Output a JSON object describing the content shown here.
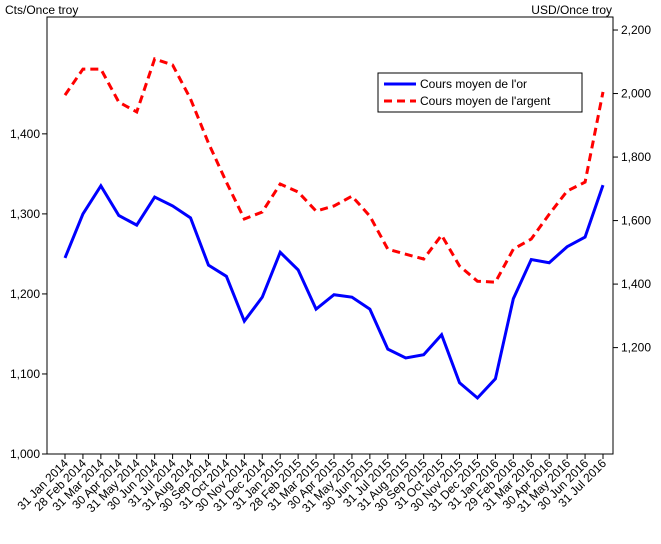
{
  "chart_data": {
    "type": "line",
    "ylabel": "Cts/Once troy",
    "y2label": "USD/Once troy",
    "categories": [
      "31 Jan 2014",
      "28 Feb 2014",
      "31 Mar 2014",
      "30 Apr 2014",
      "31 May 2014",
      "30 Jun 2014",
      "31 Jul 2014",
      "31 Aug 2014",
      "30 Sep 2014",
      "31 Oct 2014",
      "30 Nov 2014",
      "31 Dec 2014",
      "31 Jan 2015",
      "28 Feb 2015",
      "31 Mar 2015",
      "30 Apr 2015",
      "31 May 2015",
      "30 Jun 2015",
      "31 Jul 2015",
      "31 Aug 2015",
      "30 Sep 2015",
      "31 Oct 2015",
      "30 Nov 2015",
      "31 Dec 2015",
      "31 Jan 2016",
      "29 Feb 2016",
      "31 Mar 2016",
      "30 Apr 2016",
      "31 May 2016",
      "30 Jun 2016",
      "31 Jul 2016"
    ],
    "series": [
      {
        "name": "Cours moyen de l'or",
        "color": "#0000ff",
        "dash": false,
        "axis": "y",
        "values": [
          1245,
          1300,
          1335,
          1298,
          1286,
          1321,
          1310,
          1295,
          1236,
          1222,
          1166,
          1196,
          1252,
          1230,
          1181,
          1199,
          1196,
          1181,
          1131,
          1120,
          1124,
          1149,
          1089,
          1070,
          1094,
          1194,
          1243,
          1239,
          1259,
          1271,
          1336
        ]
      },
      {
        "name": "Cours moyen de l'argent",
        "color": "#ff0000",
        "dash": true,
        "axis": "y2",
        "values": [
          1995,
          2077,
          2077,
          1973,
          1942,
          2109,
          2090,
          1983,
          1844,
          1721,
          1605,
          1627,
          1715,
          1690,
          1630,
          1646,
          1677,
          1614,
          1510,
          1494,
          1479,
          1554,
          1457,
          1409,
          1406,
          1510,
          1542,
          1620,
          1693,
          1721,
          2005
        ]
      }
    ],
    "ylim": [
      1000,
      1546
    ],
    "yticks": [
      {
        "value": 1000,
        "label": "1,000"
      },
      {
        "value": 1100,
        "label": "1,100"
      },
      {
        "value": 1200,
        "label": "1,200"
      },
      {
        "value": 1300,
        "label": "1,300"
      },
      {
        "value": 1400,
        "label": "1,400"
      }
    ],
    "y2lim": [
      865,
      2241
    ],
    "y2ticks": [
      {
        "value": 1200,
        "label": "1,200"
      },
      {
        "value": 1400,
        "label": "1,400"
      },
      {
        "value": 1600,
        "label": "1,600"
      },
      {
        "value": 1800,
        "label": "1,800"
      },
      {
        "value": 2000,
        "label": "2,000"
      },
      {
        "value": 2200,
        "label": "2,200"
      }
    ],
    "grid": false,
    "legend": "upper right"
  }
}
